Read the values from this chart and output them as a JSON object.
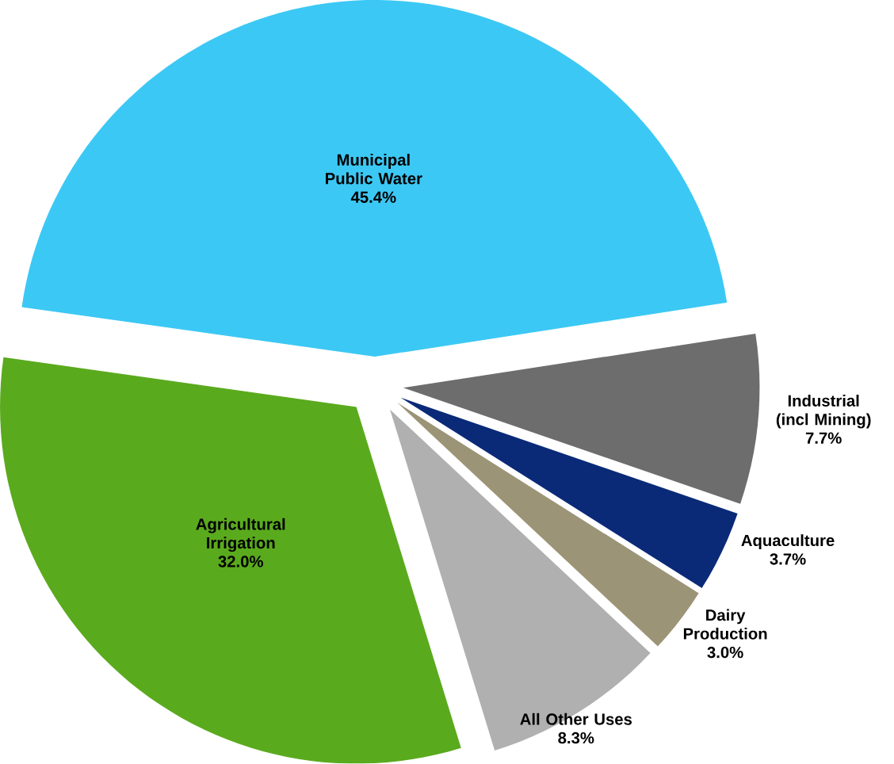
{
  "chart_data": {
    "type": "pie",
    "categories": [
      "Municipal Public Water",
      "Industrial (incl Mining)",
      "Aquaculture",
      "Dairy Production",
      "All Other Uses",
      "Agricultural Irrigation"
    ],
    "values": [
      45.4,
      7.7,
      3.7,
      3.0,
      8.3,
      32.0
    ],
    "colors": [
      "#3cc8f4",
      "#6d6d6d",
      "#0a2a78",
      "#9c9476",
      "#b0b0b0",
      "#5aaa1e"
    ],
    "value_labels": [
      "45.4%",
      "7.7%",
      "3.7%",
      "3.0%",
      "8.3%",
      "32.0%"
    ]
  }
}
